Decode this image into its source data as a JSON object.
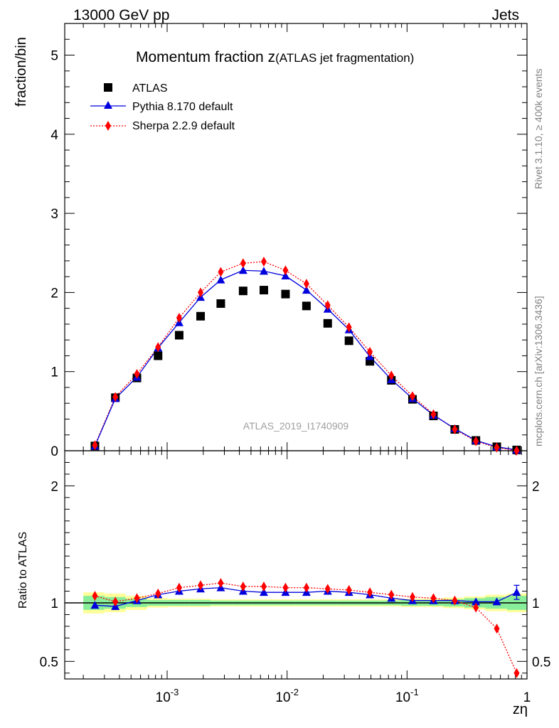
{
  "header": {
    "left": "13000 GeV pp",
    "right": "Jets"
  },
  "side_labels": {
    "rivet": "Rivet 3.1.10, ≥ 400k events",
    "mcplots": "mcplots.cern.ch [arXiv:1306.3436]"
  },
  "chart_data": {
    "type": "scatter",
    "title_main": "Momentum fraction z",
    "title_sub": "(ATLAS jet fragmentation)",
    "watermark": "ATLAS_2019_I1740909",
    "xlabel": "zη",
    "ylabel_top": "fraction/bin",
    "ylabel_bottom": "Ratio to ATLAS",
    "xscale": "log",
    "xlim": [
      0.00014,
      1.0
    ],
    "ylim_top": [
      0,
      5.4
    ],
    "ylim_bottom": [
      0.35,
      2.3
    ],
    "x_tick_labels": [
      {
        "value": 0.001,
        "label": "10",
        "exp": "-3"
      },
      {
        "value": 0.01,
        "label": "10",
        "exp": "-2"
      },
      {
        "value": 0.1,
        "label": "10",
        "exp": "-1"
      },
      {
        "value": 1.0,
        "label": "1",
        "exp": ""
      }
    ],
    "y_tick_labels_top": [
      "0",
      "1",
      "2",
      "3",
      "4",
      "5"
    ],
    "y_tick_labels_bottom": [
      {
        "value": 0.5,
        "label": "0.5"
      },
      {
        "value": 1.0,
        "label": "1"
      },
      {
        "value": 2.0,
        "label": "2"
      }
    ],
    "legend": {
      "placement": "top-left",
      "entries": [
        "ATLAS",
        "Pythia 8.170 default",
        "Sherpa 2.2.9 default"
      ]
    },
    "x": [
      0.00025,
      0.00037,
      0.00056,
      0.00084,
      0.00126,
      0.0019,
      0.0028,
      0.0043,
      0.0064,
      0.0097,
      0.0145,
      0.0218,
      0.0328,
      0.049,
      0.074,
      0.111,
      0.166,
      0.25,
      0.375,
      0.56,
      0.82
    ],
    "bin_edges": [
      0.0002,
      0.0003,
      0.00045,
      0.00068,
      0.00102,
      0.00153,
      0.0023,
      0.0035,
      0.0052,
      0.0078,
      0.0117,
      0.0176,
      0.0264,
      0.0396,
      0.059,
      0.089,
      0.134,
      0.2,
      0.3,
      0.45,
      0.68,
      1.0
    ],
    "series": [
      {
        "name": "ATLAS",
        "color": "#000000",
        "marker": "square",
        "values": [
          0.06,
          0.67,
          0.92,
          1.2,
          1.46,
          1.7,
          1.86,
          2.02,
          2.03,
          1.98,
          1.83,
          1.61,
          1.39,
          1.13,
          0.89,
          0.65,
          0.44,
          0.27,
          0.13,
          0.05,
          0.01
        ]
      },
      {
        "name": "Pythia 8.170 default",
        "color": "#0000dd",
        "marker": "triangle",
        "line": "solid",
        "values": [
          0.06,
          0.66,
          0.93,
          1.3,
          1.62,
          1.94,
          2.16,
          2.28,
          2.27,
          2.21,
          2.03,
          1.79,
          1.53,
          1.19,
          0.9,
          0.66,
          0.45,
          0.28,
          0.13,
          0.05,
          0.01
        ],
        "ratio": [
          0.98,
          0.97,
          1.02,
          1.07,
          1.1,
          1.12,
          1.13,
          1.1,
          1.09,
          1.09,
          1.09,
          1.1,
          1.09,
          1.07,
          1.04,
          1.02,
          1.02,
          1.02,
          1.01,
          1.01,
          1.09
        ],
        "ratio_err_last": 0.06
      },
      {
        "name": "Sherpa 2.2.9 default",
        "color": "#ff0000",
        "marker": "diamond",
        "line": "dotted",
        "values": [
          0.07,
          0.68,
          0.97,
          1.31,
          1.68,
          2.0,
          2.26,
          2.37,
          2.39,
          2.28,
          2.11,
          1.84,
          1.56,
          1.25,
          0.95,
          0.69,
          0.46,
          0.27,
          0.12,
          0.04,
          0.0
        ],
        "ratio": [
          1.06,
          1.01,
          1.04,
          1.08,
          1.13,
          1.15,
          1.17,
          1.14,
          1.14,
          1.13,
          1.13,
          1.12,
          1.11,
          1.09,
          1.07,
          1.05,
          1.04,
          1.02,
          0.96,
          0.78,
          0.4
        ]
      }
    ],
    "uncertainty_bands": {
      "inner_color": "#88ee99",
      "outer_color": "#ffff99",
      "inner_halfwidth": [
        0.06,
        0.05,
        0.035,
        0.025,
        0.025,
        0.025,
        0.02,
        0.02,
        0.02,
        0.02,
        0.02,
        0.02,
        0.02,
        0.02,
        0.02,
        0.025,
        0.025,
        0.03,
        0.04,
        0.05,
        0.06
      ],
      "outer_halfwidth": [
        0.09,
        0.08,
        0.06,
        0.04,
        0.035,
        0.035,
        0.03,
        0.03,
        0.03,
        0.03,
        0.03,
        0.03,
        0.03,
        0.03,
        0.03,
        0.035,
        0.035,
        0.045,
        0.055,
        0.07,
        0.08
      ]
    }
  }
}
